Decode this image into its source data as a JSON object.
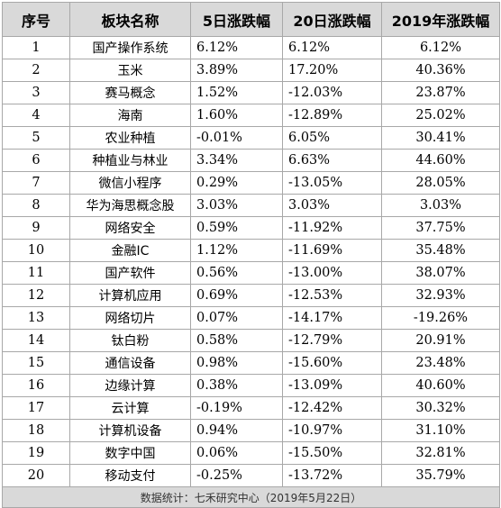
{
  "table": {
    "headers": [
      "序号",
      "板块名称",
      "5日涨跌幅",
      "20日涨跌幅",
      "2019年涨跌幅"
    ],
    "rows": [
      [
        "1",
        "国产操作系统",
        "6.12%",
        "6.12%",
        "6.12%"
      ],
      [
        "2",
        "玉米",
        "3.89%",
        "17.20%",
        "40.36%"
      ],
      [
        "3",
        "赛马概念",
        "1.52%",
        "-12.03%",
        "23.87%"
      ],
      [
        "4",
        "海南",
        "1.60%",
        "-12.89%",
        "25.02%"
      ],
      [
        "5",
        "农业种植",
        "-0.01%",
        "6.05%",
        "30.41%"
      ],
      [
        "6",
        "种植业与林业",
        "3.34%",
        "6.63%",
        "44.60%"
      ],
      [
        "7",
        "微信小程序",
        "0.29%",
        "-13.05%",
        "28.05%"
      ],
      [
        "8",
        "华为海思概念股",
        "3.03%",
        "3.03%",
        "3.03%"
      ],
      [
        "9",
        "网络安全",
        "0.59%",
        "-11.92%",
        "37.75%"
      ],
      [
        "10",
        "金融IC",
        "1.12%",
        "-11.69%",
        "35.48%"
      ],
      [
        "11",
        "国产软件",
        "0.56%",
        "-13.00%",
        "38.07%"
      ],
      [
        "12",
        "计算机应用",
        "0.69%",
        "-12.53%",
        "32.93%"
      ],
      [
        "13",
        "网络切片",
        "0.07%",
        "-14.17%",
        "-19.26%"
      ],
      [
        "14",
        "钛白粉",
        "0.58%",
        "-12.79%",
        "20.91%"
      ],
      [
        "15",
        "通信设备",
        "0.98%",
        "-15.60%",
        "23.48%"
      ],
      [
        "16",
        "边缘计算",
        "0.38%",
        "-13.09%",
        "40.60%"
      ],
      [
        "17",
        "云计算",
        "-0.19%",
        "-12.42%",
        "30.32%"
      ],
      [
        "18",
        "计算机设备",
        "0.94%",
        "-10.97%",
        "31.10%"
      ],
      [
        "19",
        "数字中国",
        "0.06%",
        "-15.50%",
        "32.81%"
      ],
      [
        "20",
        "移动支付",
        "-0.25%",
        "-13.72%",
        "35.79%"
      ]
    ],
    "footer": "数据统计：七禾研究中心（2019年5月22日）"
  },
  "colors": {
    "header_bg": "#d9d9d9",
    "footer_bg": "#d9d9d9",
    "border": "#a8a8a8",
    "text": "#000000"
  }
}
